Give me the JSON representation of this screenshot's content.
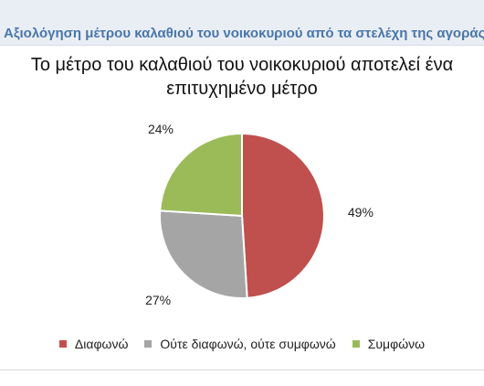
{
  "header": {
    "title": "Αξιολόγηση μέτρου καλαθιού του νοικοκυριού από τα στελέχη της αγοράς"
  },
  "chart_data": {
    "type": "pie",
    "title": "Το μέτρο του καλαθιού του νοικοκυριού αποτελεί ένα επιτυχημένο μέτρο",
    "start_angle_deg": 0,
    "slices": [
      {
        "label": "Διαφωνώ",
        "value": 49,
        "display": "49%",
        "color": "#c0504d"
      },
      {
        "label": "Ούτε διαφωνώ, ούτε συμφωνώ",
        "value": 27,
        "display": "27%",
        "color": "#a5a5a5"
      },
      {
        "label": "Συμφώνω",
        "value": 24,
        "display": "24%",
        "color": "#9bbb59"
      }
    ],
    "legend_position": "bottom"
  }
}
